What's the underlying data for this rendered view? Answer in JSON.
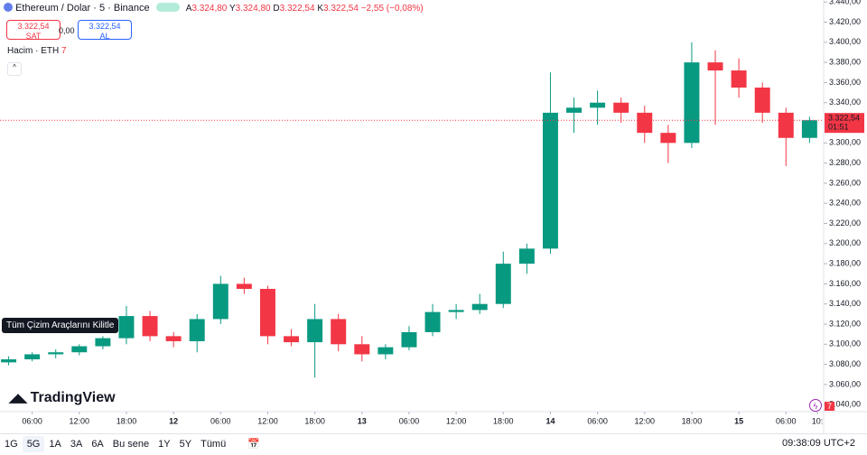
{
  "header": {
    "symbol": "Ethereum / Dolar · 5 · Binance",
    "open_label": "A",
    "open": "3.324,80",
    "high_label": "Y",
    "high": "3.324,80",
    "low_label": "D",
    "low": "3.322,54",
    "close_label": "K",
    "close": "3.322,54",
    "change": "−2,55 (−0,08%)"
  },
  "trade": {
    "sell_price": "3.322,54",
    "sell": "SAT",
    "spread": "0,00",
    "buy_price": "3.322,54",
    "buy": "AL"
  },
  "volume_legend": {
    "title": "Hacim · ETH",
    "value": "7"
  },
  "tooltip": "Tüm Çizim Araçlarını Kilitle",
  "logo": "TradingView",
  "volume_badge": "7",
  "chart_data": {
    "type": "candlestick",
    "x": [
      -21,
      -18,
      -15,
      -12,
      -9,
      -6,
      -3,
      0,
      3,
      6,
      9,
      12,
      15,
      18,
      21,
      24,
      27,
      30,
      33,
      36,
      39,
      42,
      45,
      48,
      51,
      54,
      57,
      60,
      63,
      66,
      69,
      72,
      75,
      78,
      81
    ],
    "open": [
      3082,
      3085,
      3090,
      3092,
      3098,
      3106,
      3128,
      3108,
      3103,
      3125,
      3160,
      3155,
      3108,
      3102,
      3125,
      3100,
      3090,
      3097,
      3112,
      3132,
      3134,
      3140,
      3180,
      3195,
      3330,
      3335,
      3340,
      3330,
      3310,
      3300,
      3380,
      3372,
      3355,
      3330,
      3305
    ],
    "high": [
      3088,
      3092,
      3095,
      3100,
      3108,
      3138,
      3133,
      3112,
      3130,
      3168,
      3166,
      3158,
      3115,
      3140,
      3130,
      3108,
      3100,
      3118,
      3140,
      3140,
      3150,
      3192,
      3200,
      3370,
      3345,
      3352,
      3345,
      3337,
      3318,
      3400,
      3392,
      3384,
      3360,
      3335,
      3326
    ],
    "low": [
      3079,
      3083,
      3086,
      3089,
      3095,
      3100,
      3103,
      3097,
      3092,
      3120,
      3150,
      3100,
      3098,
      3067,
      3093,
      3083,
      3085,
      3094,
      3108,
      3125,
      3130,
      3136,
      3170,
      3190,
      3310,
      3318,
      3320,
      3300,
      3280,
      3295,
      3318,
      3345,
      3320,
      3277,
      3300
    ],
    "close": [
      3085,
      3090,
      3092,
      3098,
      3106,
      3128,
      3108,
      3103,
      3125,
      3160,
      3155,
      3108,
      3102,
      3125,
      3100,
      3090,
      3097,
      3112,
      3132,
      3134,
      3140,
      3180,
      3195,
      3330,
      3335,
      3340,
      3330,
      3310,
      3300,
      3380,
      3372,
      3355,
      3330,
      3305,
      3322.54
    ],
    "up_color": "#089981",
    "down_color": "#f23645",
    "xlim": [
      -22.1,
      82.8
    ],
    "ylim": [
      3033,
      3442
    ],
    "xticks": [
      {
        "value": -18,
        "label": "06:00"
      },
      {
        "value": -12,
        "label": "12:00"
      },
      {
        "value": -6,
        "label": "18:00"
      },
      {
        "value": 0,
        "label": "12"
      },
      {
        "value": 6,
        "label": "06:00"
      },
      {
        "value": 12,
        "label": "12:00"
      },
      {
        "value": 18,
        "label": "18:00"
      },
      {
        "value": 24,
        "label": "13"
      },
      {
        "value": 30,
        "label": "06:00"
      },
      {
        "value": 36,
        "label": "12:00"
      },
      {
        "value": 42,
        "label": "18:00"
      },
      {
        "value": 48,
        "label": "14"
      },
      {
        "value": 54,
        "label": "06:00"
      },
      {
        "value": 60,
        "label": "12:00"
      },
      {
        "value": 66,
        "label": "18:00"
      },
      {
        "value": 72,
        "label": "15"
      },
      {
        "value": 78,
        "label": "06:00"
      },
      {
        "value": 82,
        "label": "10:"
      }
    ],
    "yticks": [
      {
        "value": 3440,
        "label": "3.440,00"
      },
      {
        "value": 3420,
        "label": "3.420,00"
      },
      {
        "value": 3400,
        "label": "3.400,00"
      },
      {
        "value": 3380,
        "label": "3.380,00"
      },
      {
        "value": 3360,
        "label": "3.360,00"
      },
      {
        "value": 3340,
        "label": "3.340,00"
      },
      {
        "value": 3300,
        "label": "3.300,00"
      },
      {
        "value": 3280,
        "label": "3.280,00"
      },
      {
        "value": 3260,
        "label": "3.260,00"
      },
      {
        "value": 3240,
        "label": "3.240,00"
      },
      {
        "value": 3220,
        "label": "3.220,00"
      },
      {
        "value": 3200,
        "label": "3.200,00"
      },
      {
        "value": 3180,
        "label": "3.180,00"
      },
      {
        "value": 3160,
        "label": "3.160,00"
      },
      {
        "value": 3140,
        "label": "3.140,00"
      },
      {
        "value": 3120,
        "label": "3.120,00"
      },
      {
        "value": 3100,
        "label": "3.100,00"
      },
      {
        "value": 3080,
        "label": "3.080,00"
      },
      {
        "value": 3060,
        "label": "3.060,00"
      },
      {
        "value": 3040,
        "label": "3.040,00"
      }
    ],
    "last_price": {
      "value": 3322.54,
      "label": "3.322,54",
      "countdown": "01:51",
      "color": "#f23645"
    }
  },
  "toolbar": {
    "ranges": [
      "1G",
      "5G",
      "1A",
      "3A",
      "6A",
      "Bu sene",
      "1Y",
      "5Y",
      "Tümü"
    ],
    "active": 1,
    "clock": "09:38:09 UTC+2"
  }
}
